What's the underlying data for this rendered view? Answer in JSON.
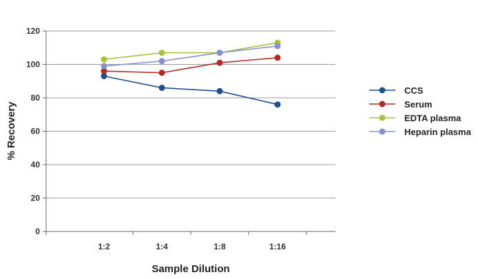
{
  "chart_data": {
    "type": "line",
    "title": "",
    "xlabel": "Sample Dilution",
    "ylabel": "% Recovery",
    "categories": [
      "1:2",
      "1:4",
      "1:8",
      "1:16"
    ],
    "ylim": [
      0,
      120
    ],
    "yticks": [
      "0",
      "20",
      "40",
      "60",
      "80",
      "100",
      "120"
    ],
    "grid": true,
    "legend_position": "right",
    "series": [
      {
        "name": "CCS",
        "color": "#1f4e8c",
        "values": [
          93,
          86,
          84,
          76
        ]
      },
      {
        "name": "Serum",
        "color": "#b22a22",
        "values": [
          96,
          95,
          101,
          104
        ]
      },
      {
        "name": "EDTA plasma",
        "color": "#a8c23a",
        "values": [
          103,
          107,
          107,
          113
        ]
      },
      {
        "name": "Heparin plasma",
        "color": "#8a8fd0",
        "values": [
          99,
          102,
          107,
          111
        ]
      }
    ]
  }
}
